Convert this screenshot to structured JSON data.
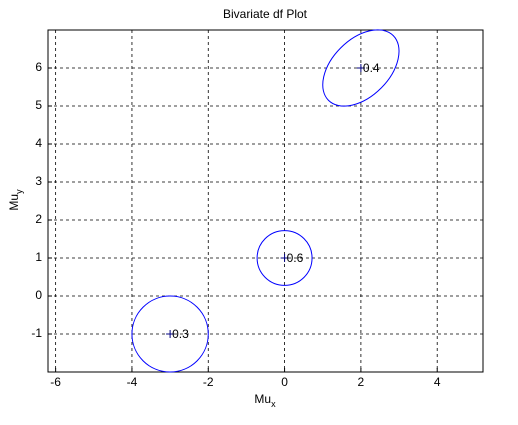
{
  "chart_data": {
    "type": "scatter",
    "title": "Bivariate df Plot",
    "xlabel": {
      "base": "Mu",
      "sub": "x"
    },
    "ylabel": {
      "base": "Mu",
      "sub": "y"
    },
    "xlim": [
      -6.2,
      5.2
    ],
    "ylim": [
      -2,
      7
    ],
    "xticks": [
      -6,
      -4,
      -2,
      0,
      2,
      4
    ],
    "yticks": [
      -1,
      0,
      1,
      2,
      3,
      4,
      5,
      6
    ],
    "grid": true,
    "color": "#0000ff",
    "points": [
      {
        "x": -3,
        "y": -1,
        "weight": 0.3,
        "rx": 1,
        "ry": 1,
        "angle": 0
      },
      {
        "x": 0,
        "y": 1,
        "weight": 0.6,
        "rx": 0.72,
        "ry": 0.72,
        "angle": 0
      },
      {
        "x": 2,
        "y": 6,
        "weight": 0.4,
        "rx": 1.2,
        "ry": 0.75,
        "angle": 45
      }
    ]
  }
}
